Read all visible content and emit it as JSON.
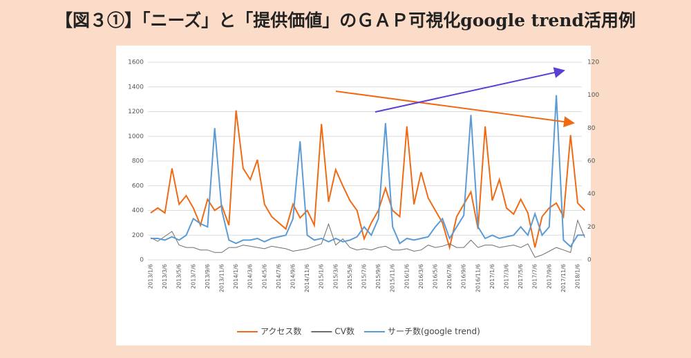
{
  "chart_data": {
    "type": "line",
    "title": "【図３①】「ニーズ」と「提供価値」のＧＡＰ可視化google trend活用例",
    "categories": [
      "2013/1/6",
      null,
      "2013/3/6",
      null,
      "2013/5/6",
      null,
      "2013/7/6",
      null,
      "2013/9/6",
      null,
      "2013/11/6",
      null,
      "2014/1/6",
      null,
      "2014/3/6",
      null,
      "2014/5/6",
      null,
      "2014/7/6",
      null,
      "2014/9/6",
      null,
      "2014/11/6",
      null,
      "2015/1/6",
      null,
      "2015/3/6",
      null,
      "2015/5/6",
      null,
      "2015/7/6",
      null,
      "2015/9/6",
      null,
      "2015/11/6",
      null,
      "2016/1/6",
      null,
      "2016/3/6",
      null,
      "2016/5/6",
      null,
      "2016/7/6",
      null,
      "2016/9/6",
      null,
      "2016/11/6",
      null,
      "2017/1/6",
      null,
      "2017/3/6",
      null,
      "2017/5/6",
      null,
      "2017/7/6",
      null,
      "2017/9/6",
      null,
      "2017/11/6",
      null,
      "2018/1/6",
      null
    ],
    "series": [
      {
        "name": "アクセス数",
        "color": "#f06a14",
        "values": [
          380,
          420,
          380,
          740,
          450,
          520,
          420,
          280,
          490,
          400,
          440,
          280,
          1210,
          740,
          650,
          810,
          450,
          350,
          300,
          250,
          450,
          340,
          400,
          280,
          1100,
          470,
          730,
          600,
          480,
          400,
          170,
          300,
          400,
          580,
          400,
          350,
          1080,
          450,
          710,
          500,
          400,
          300,
          100,
          350,
          450,
          550,
          250,
          1080,
          480,
          650,
          420,
          370,
          490,
          380,
          100,
          350,
          420,
          460,
          350,
          1010,
          460,
          400
        ]
      },
      {
        "name": "CV数",
        "color": "#6e6e6e",
        "values": [
          180,
          150,
          190,
          230,
          120,
          100,
          100,
          80,
          80,
          60,
          60,
          100,
          100,
          120,
          110,
          100,
          90,
          110,
          100,
          90,
          70,
          80,
          90,
          110,
          130,
          290,
          120,
          170,
          100,
          80,
          90,
          80,
          100,
          110,
          80,
          80,
          90,
          70,
          80,
          120,
          100,
          110,
          130,
          100,
          100,
          160,
          100,
          120,
          120,
          100,
          110,
          120,
          100,
          130,
          20,
          40,
          70,
          100,
          80,
          60,
          320,
          180
        ]
      },
      {
        "name": "サーチ数(google trend)",
        "color": "#5b9bd5",
        "axis": "y2",
        "values": [
          13,
          13,
          12,
          14,
          12,
          15,
          25,
          22,
          20,
          80,
          30,
          12,
          10,
          12,
          12,
          13,
          11,
          13,
          14,
          15,
          25,
          72,
          15,
          12,
          13,
          11,
          13,
          11,
          12,
          14,
          20,
          15,
          25,
          83,
          20,
          10,
          13,
          12,
          13,
          14,
          20,
          25,
          13,
          20,
          27,
          88,
          20,
          13,
          15,
          13,
          14,
          15,
          20,
          15,
          28,
          15,
          20,
          100,
          12,
          8,
          15,
          15
        ]
      }
    ],
    "ylim": [
      0,
      1600
    ],
    "yticks": [
      0,
      200,
      400,
      600,
      800,
      1000,
      1200,
      1400,
      1600
    ],
    "y2lim": [
      0,
      120
    ],
    "y2ticks": [
      0,
      20,
      40,
      60,
      80,
      100,
      120
    ],
    "grid": true,
    "legend": "bottom"
  }
}
